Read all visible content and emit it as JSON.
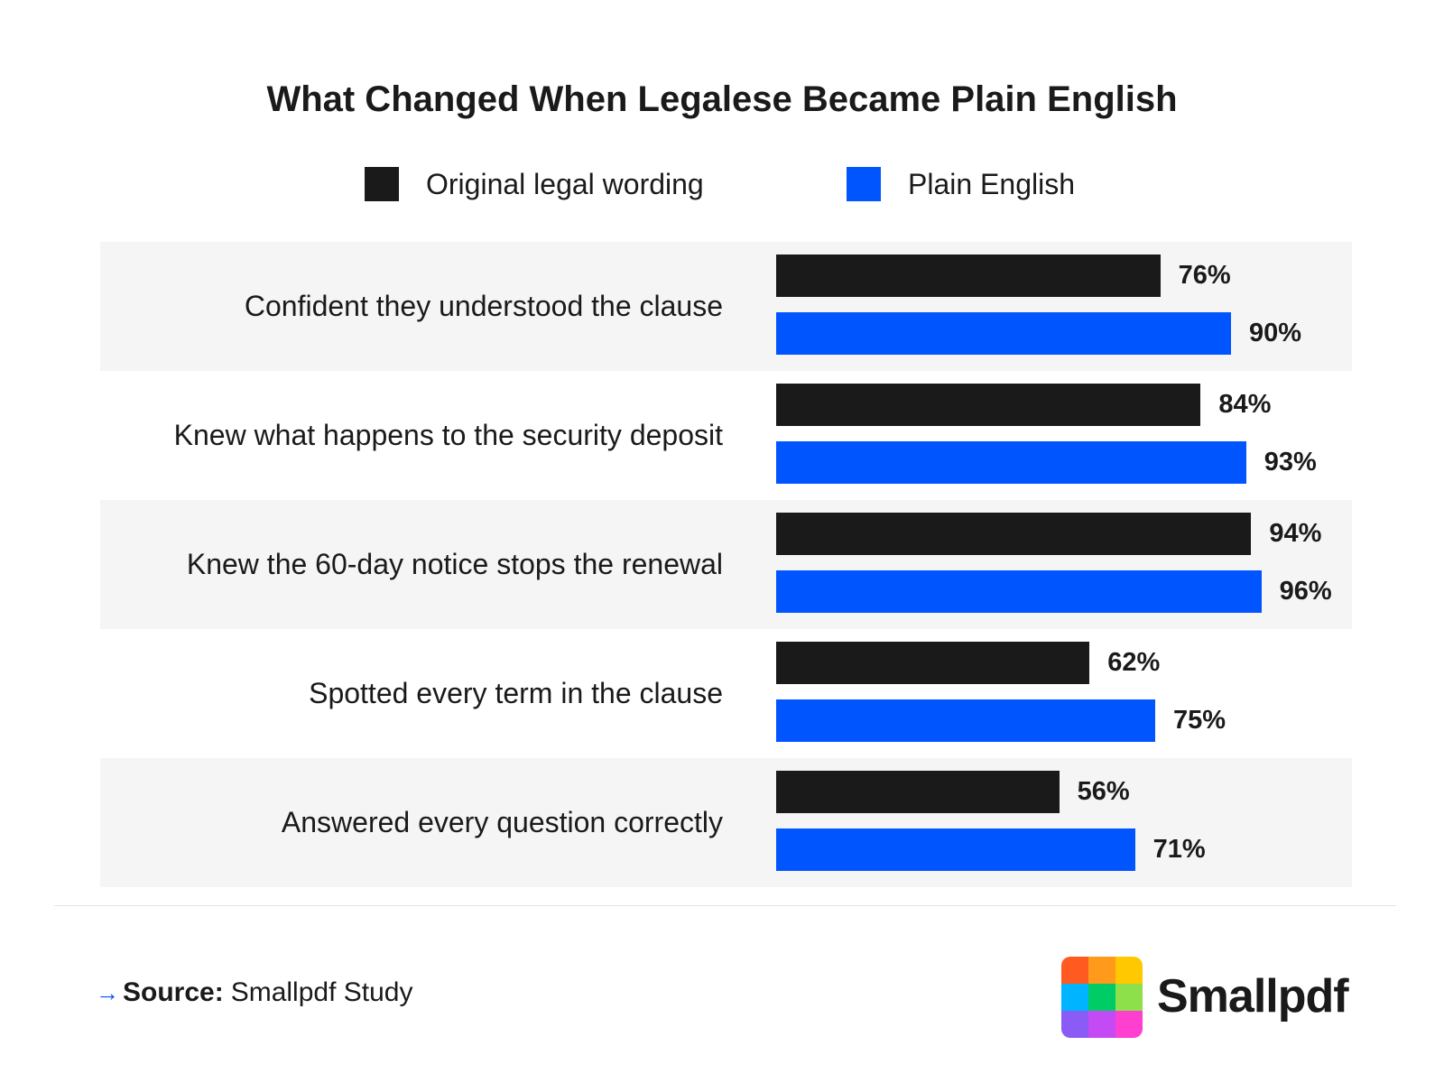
{
  "colors": {
    "original": "#1a1a1a",
    "plain": "#0055ff",
    "row_shade": "#f5f5f5"
  },
  "chart_data": {
    "type": "bar",
    "orientation": "horizontal",
    "title": "What Changed When Legalese Became Plain English",
    "categories": [
      "Confident they understood the clause",
      "Knew what happens to the security deposit",
      "Knew the 60-day notice stops the renewal",
      "Spotted every term in the clause",
      "Answered every question correctly"
    ],
    "series": [
      {
        "name": "Original legal wording",
        "values": [
          76,
          84,
          94,
          62,
          56
        ]
      },
      {
        "name": "Plain English",
        "values": [
          90,
          93,
          96,
          75,
          71
        ]
      }
    ],
    "value_labels": [
      [
        "76%",
        "84%",
        "94%",
        "62%",
        "56%"
      ],
      [
        "90%",
        "93%",
        "96%",
        "75%",
        "71%"
      ]
    ],
    "unit": "%",
    "legend_position": "top",
    "grid": false
  },
  "footer": {
    "source_label": "Source:",
    "source_text": "Smallpdf Study",
    "arrow_icon": "arrow-right-icon"
  },
  "brand": {
    "name": "Smallpdf",
    "logo_colors": [
      "#ff5a1f",
      "#ff9a1a",
      "#ffc800",
      "#00b4ff",
      "#00cc66",
      "#8ee04a",
      "#8a5cf5",
      "#c44af5",
      "#ff3fd0"
    ]
  }
}
